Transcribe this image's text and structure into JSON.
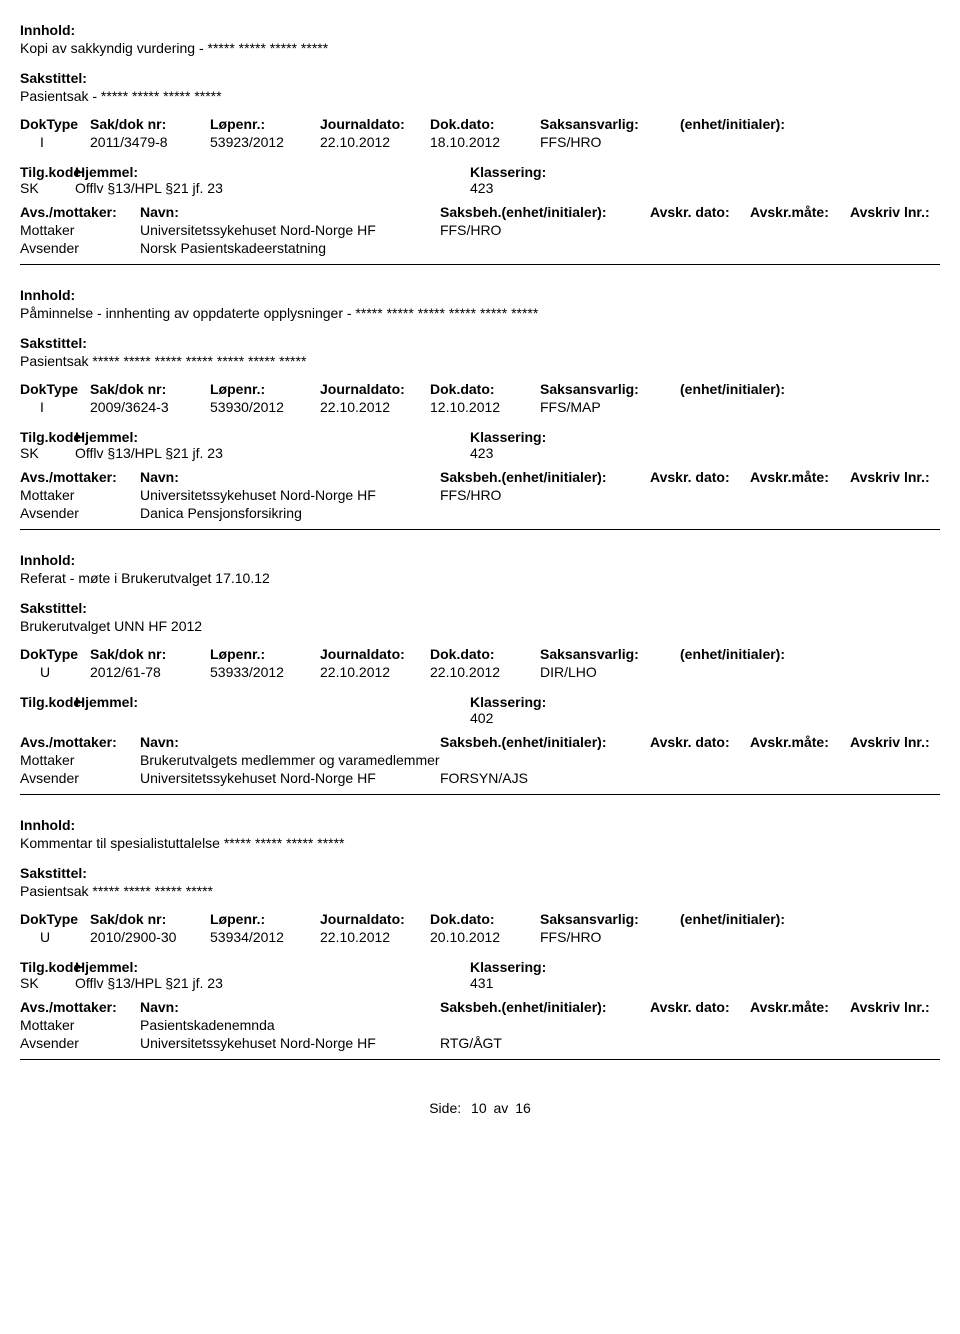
{
  "labels": {
    "innhold": "Innhold:",
    "sakstittel": "Sakstittel:",
    "doktype": "DokType",
    "saknr": "Sak/dok nr:",
    "lopenr": "Løpenr.:",
    "journaldato": "Journaldato:",
    "dokdato": "Dok.dato:",
    "saksansvarlig": "Saksansvarlig:",
    "enhet": "(enhet/initialer):",
    "tilgkode": "Tilg.kode",
    "hjemmel": "Hjemmel:",
    "klassering": "Klassering:",
    "avsmottaker": "Avs./mottaker:",
    "navn": "Navn:",
    "saksbeh": "Saksbeh.(enhet/initialer):",
    "avskrdato": "Avskr. dato:",
    "avskrmate": "Avskr.måte:",
    "avskrivlnr": "Avskriv lnr.:",
    "mottaker": "Mottaker",
    "avsender": "Avsender"
  },
  "footer": {
    "side": "Side:",
    "page": "10",
    "av": "av",
    "total": "16"
  },
  "records": [
    {
      "innhold": "Kopi av sakkyndig vurdering - ***** ***** ***** *****",
      "sakstittel": "Pasientsak - ***** ***** ***** *****",
      "doktype": "I",
      "saknr": "2011/3479-8",
      "lopenr": "53923/2012",
      "journaldato": "22.10.2012",
      "dokdato": "18.10.2012",
      "saksansvarlig": "FFS/HRO",
      "enhet": "",
      "tilgkode": "SK",
      "hjemmel": "Offlv §13/HPL §21 jf. 23",
      "klassering": "423",
      "parties": [
        {
          "role": "Mottaker",
          "name": "Universitetssykehuset Nord-Norge HF",
          "unit": "FFS/HRO"
        },
        {
          "role": "Avsender",
          "name": "Norsk Pasientskadeerstatning",
          "unit": ""
        }
      ]
    },
    {
      "innhold": "Påminnelse - innhenting av oppdaterte opplysninger - ***** ***** ***** ***** ***** *****",
      "sakstittel": "Pasientsak ***** ***** ***** ***** ***** ***** *****",
      "doktype": "I",
      "saknr": "2009/3624-3",
      "lopenr": "53930/2012",
      "journaldato": "22.10.2012",
      "dokdato": "12.10.2012",
      "saksansvarlig": "FFS/MAP",
      "enhet": "",
      "tilgkode": "SK",
      "hjemmel": "Offlv §13/HPL §21 jf. 23",
      "klassering": "423",
      "parties": [
        {
          "role": "Mottaker",
          "name": "Universitetssykehuset Nord-Norge HF",
          "unit": "FFS/HRO"
        },
        {
          "role": "Avsender",
          "name": "Danica Pensjonsforsikring",
          "unit": ""
        }
      ]
    },
    {
      "innhold": "Referat - møte i Brukerutvalget 17.10.12",
      "sakstittel": "Brukerutvalget UNN HF 2012",
      "doktype": "U",
      "saknr": "2012/61-78",
      "lopenr": "53933/2012",
      "journaldato": "22.10.2012",
      "dokdato": "22.10.2012",
      "saksansvarlig": "DIR/LHO",
      "enhet": "",
      "tilgkode": "",
      "hjemmel": "",
      "klassering": "402",
      "parties": [
        {
          "role": "Mottaker",
          "name": "Brukerutvalgets medlemmer og varamedlemmer",
          "unit": ""
        },
        {
          "role": "Avsender",
          "name": "Universitetssykehuset Nord-Norge HF",
          "unit": "FORSYN/AJS"
        }
      ]
    },
    {
      "innhold": "Kommentar til spesialistuttalelse ***** ***** ***** *****",
      "sakstittel": "Pasientsak ***** ***** ***** *****",
      "doktype": "U",
      "saknr": "2010/2900-30",
      "lopenr": "53934/2012",
      "journaldato": "22.10.2012",
      "dokdato": "20.10.2012",
      "saksansvarlig": "FFS/HRO",
      "enhet": "",
      "tilgkode": "SK",
      "hjemmel": "Offlv §13/HPL §21 jf. 23",
      "klassering": "431",
      "parties": [
        {
          "role": "Mottaker",
          "name": "Pasientskadenemnda",
          "unit": ""
        },
        {
          "role": "Avsender",
          "name": "Universitetssykehuset Nord-Norge HF",
          "unit": "RTG/ÅGT"
        }
      ]
    }
  ]
}
